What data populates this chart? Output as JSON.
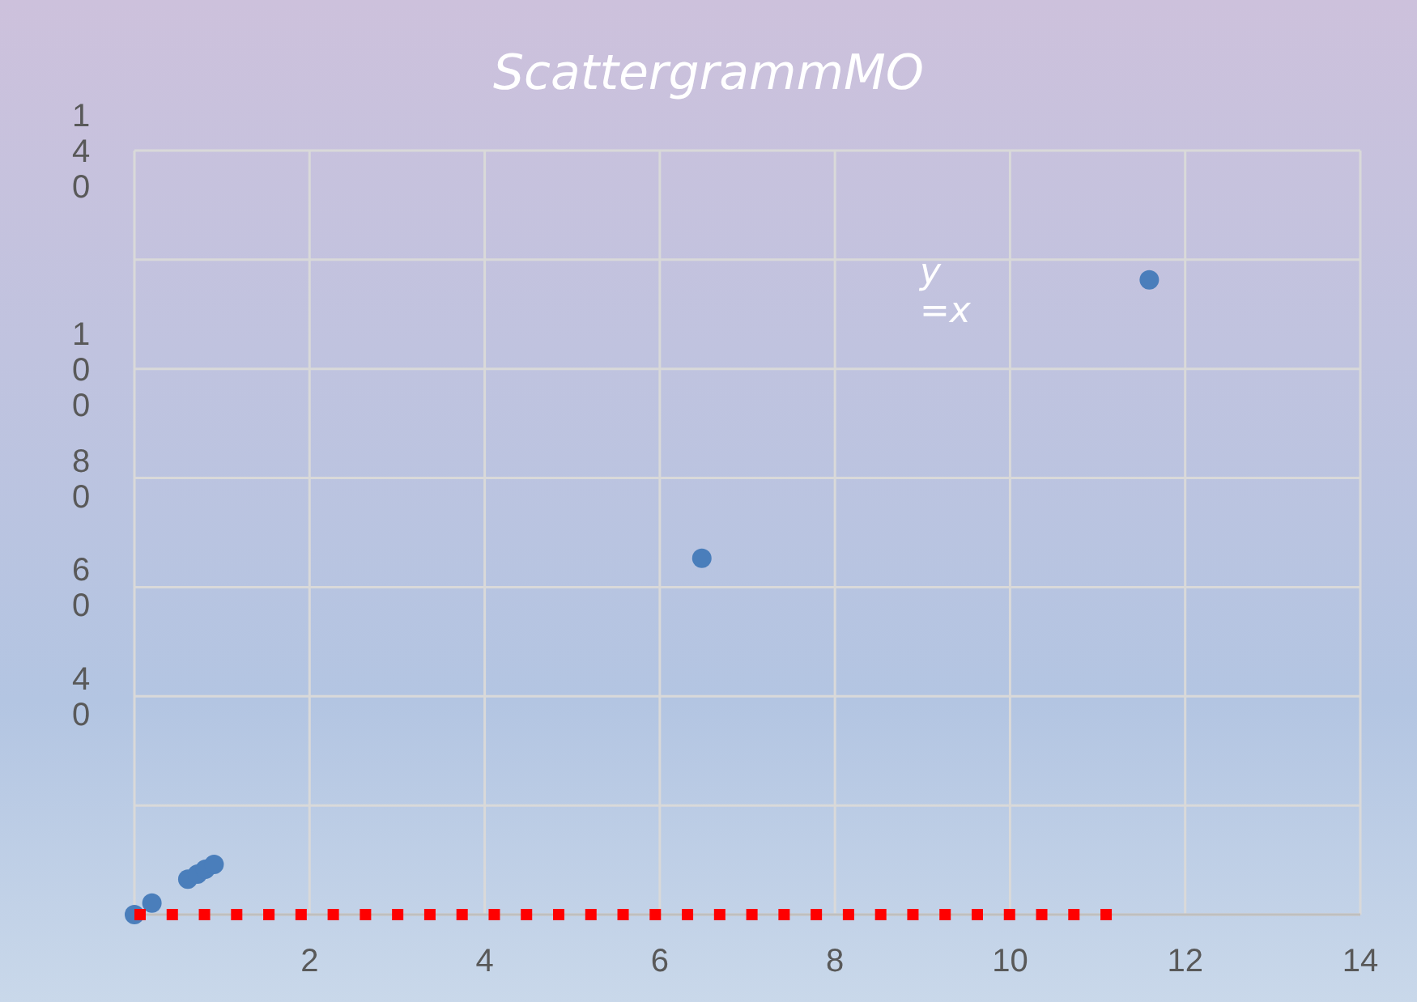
{
  "chart_data": {
    "type": "scatter",
    "title": "ScattergrammMO",
    "xlim": [
      0,
      14
    ],
    "ylim": [
      0,
      140
    ],
    "xticks": [
      {
        "value": 0,
        "label": null
      },
      2,
      4,
      6,
      8,
      10,
      12,
      14
    ],
    "yticks": [
      {
        "value": 0,
        "label": null
      },
      {
        "value": 20,
        "label": null
      },
      40,
      60,
      80,
      100,
      {
        "value": 120,
        "label": null
      },
      140
    ],
    "grid": true,
    "series": [
      {
        "color": "#4a7ebb",
        "marker": "circle",
        "x": [
          0,
          0.2,
          0.61,
          0.72,
          0.81,
          0.91,
          6.48,
          11.59
        ],
        "values": [
          0,
          2.1,
          6.5,
          7.4,
          8.3,
          9.2,
          65.3,
          116.3
        ]
      },
      {
        "type": "line",
        "color": "#ff0000",
        "line_style": "dotted",
        "x": [
          0,
          11.4
        ],
        "values": [
          0,
          0
        ]
      }
    ],
    "annotations": [
      "y=x"
    ]
  }
}
